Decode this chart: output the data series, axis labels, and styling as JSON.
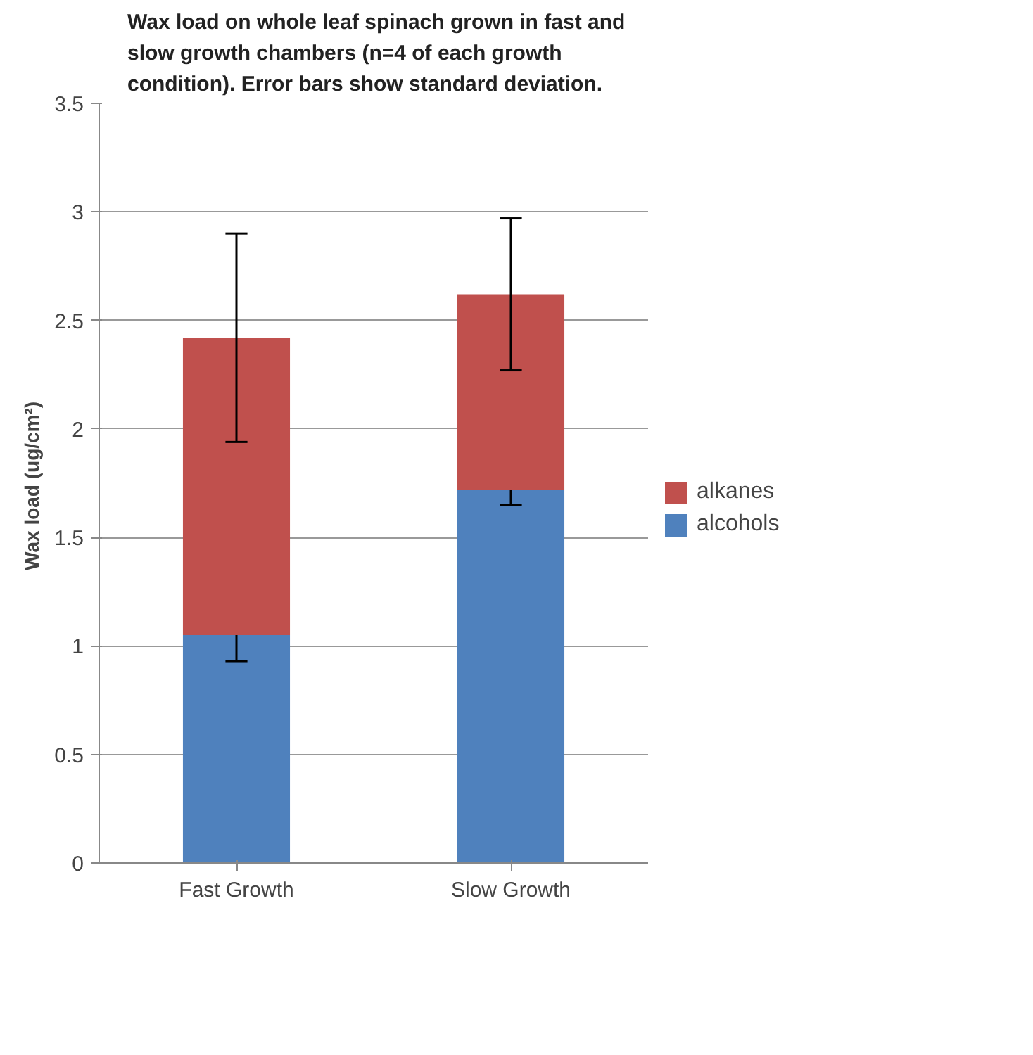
{
  "chart_data": {
    "type": "bar",
    "stacked": true,
    "title": "Wax load on whole leaf spinach  grown in fast and slow growth chambers (n=4 of each growth condition). Error bars show standard deviation.",
    "ylabel": "Wax load  (ug/cm²)",
    "categories": [
      "Fast Growth",
      "Slow Growth"
    ],
    "series": [
      {
        "name": "alcohols",
        "color": "#4f81bd",
        "values": [
          1.05,
          1.72
        ],
        "errors": [
          0.12,
          0.07
        ]
      },
      {
        "name": "alkanes",
        "color": "#c0504d",
        "values": [
          1.37,
          0.9
        ],
        "errors": [
          0.48,
          0.35
        ]
      }
    ],
    "ylim": [
      0,
      3.5
    ],
    "yticks": [
      0,
      0.5,
      1,
      1.5,
      2,
      2.5,
      3,
      3.5
    ],
    "grid": "y",
    "legend": "right"
  }
}
